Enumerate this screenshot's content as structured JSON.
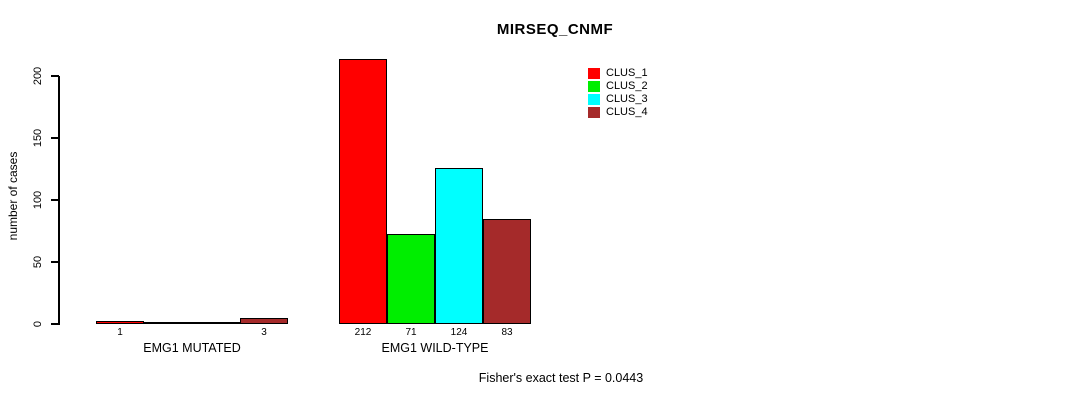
{
  "chart_data": {
    "type": "bar",
    "title": "MIRSEQ_CNMF",
    "ylabel": "number of cases",
    "xlabel": "",
    "categories": [
      "EMG1 MUTATED",
      "EMG1 WILD-TYPE"
    ],
    "series": [
      {
        "name": "CLUS_1",
        "color": "#FF0000",
        "values": [
          1,
          212
        ]
      },
      {
        "name": "CLUS_2",
        "color": "#00EE00",
        "values": [
          0,
          71
        ]
      },
      {
        "name": "CLUS_3",
        "color": "#00FFFF",
        "values": [
          0,
          124
        ]
      },
      {
        "name": "CLUS_4",
        "color": "#A52A2A",
        "values": [
          3,
          83
        ]
      }
    ],
    "shown_value_labels": [
      [
        "1",
        null,
        null,
        "3"
      ],
      [
        "212",
        "71",
        "124",
        "83"
      ]
    ],
    "yticks": [
      0,
      50,
      100,
      150,
      200
    ],
    "ylim": [
      0,
      220
    ],
    "grid": false,
    "legend_position": "top-right-inside",
    "annotation": "Fisher's exact test P = 0.0443",
    "bar_border_color": "#000000",
    "background_color": "#FFFFFF"
  }
}
